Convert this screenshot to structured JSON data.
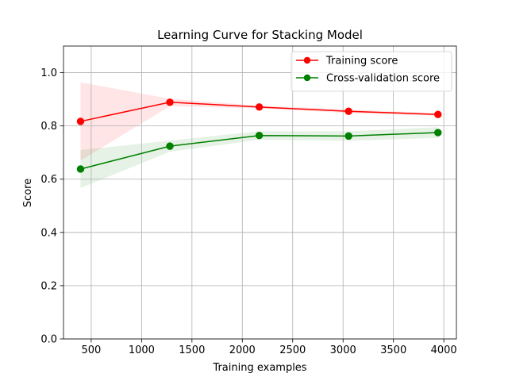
{
  "chart_data": {
    "type": "line",
    "title": "Learning Curve for Stacking Model",
    "xlabel": "Training examples",
    "ylabel": "Score",
    "xlim": [
      225,
      4125
    ],
    "ylim": [
      0.0,
      1.1
    ],
    "xticks": [
      500,
      1000,
      1500,
      2000,
      2500,
      3000,
      3500,
      4000
    ],
    "xtick_labels": [
      "500",
      "1000",
      "1500",
      "2000",
      "2500",
      "3000",
      "3500",
      "4000"
    ],
    "yticks": [
      0.0,
      0.2,
      0.4,
      0.6,
      0.8,
      1.0
    ],
    "ytick_labels": [
      "0.0",
      "0.2",
      "0.4",
      "0.6",
      "0.8",
      "1.0"
    ],
    "grid": true,
    "legend_position": "top-right",
    "x": [
      394,
      1281,
      2168,
      3055,
      3942
    ],
    "series": [
      {
        "name": "Training score",
        "color": "#ff0000",
        "values": [
          0.817,
          0.889,
          0.871,
          0.855,
          0.843
        ],
        "band_lower": [
          0.67,
          0.874,
          0.866,
          0.848,
          0.838
        ],
        "band_upper": [
          0.964,
          0.902,
          0.876,
          0.862,
          0.848
        ]
      },
      {
        "name": "Cross-validation score",
        "color": "#008000",
        "values": [
          0.638,
          0.724,
          0.764,
          0.762,
          0.775
        ],
        "band_lower": [
          0.567,
          0.703,
          0.748,
          0.744,
          0.755
        ],
        "band_upper": [
          0.709,
          0.745,
          0.78,
          0.78,
          0.795
        ]
      }
    ]
  }
}
